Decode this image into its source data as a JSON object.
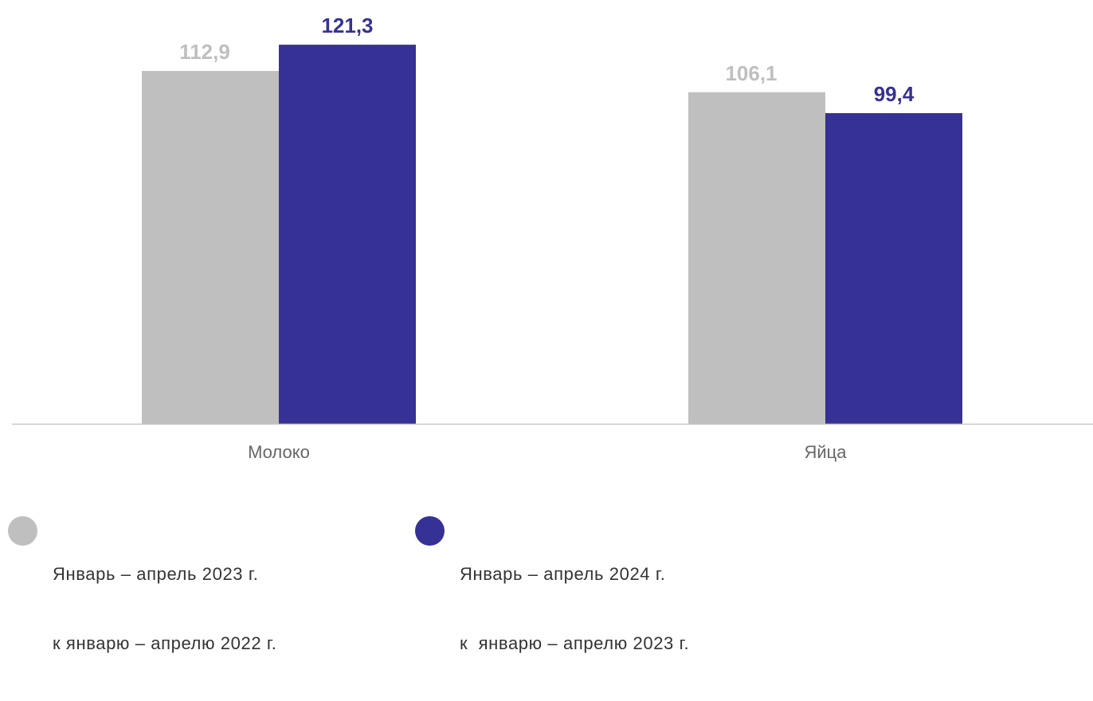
{
  "chart_data": {
    "type": "bar",
    "categories": [
      "Молоко",
      "Яйца"
    ],
    "series": [
      {
        "name": "Январь – апрель 2023 г. к январю – апрелю 2022 г.",
        "values": [
          112.9,
          106.1
        ],
        "labels": [
          "112,9",
          "106,1"
        ],
        "color": "#bfbfbf"
      },
      {
        "name": "Январь – апрель 2024 г. к январю – апрелю 2023 г.",
        "values": [
          121.3,
          99.4
        ],
        "labels": [
          "121,3",
          "99,4"
        ],
        "color": "#363194"
      }
    ],
    "ylim": [
      0,
      130
    ],
    "grid": false,
    "legend_position": "bottom"
  },
  "legend": [
    {
      "line1": "Январь – апрель 2023 г.",
      "line2": "к январю – апрелю 2022 г.",
      "color": "#bfbfbf"
    },
    {
      "line1": "Январь – апрель 2024 г.",
      "line2": "к  январю – апрелю 2023 г.",
      "color": "#363194"
    }
  ]
}
